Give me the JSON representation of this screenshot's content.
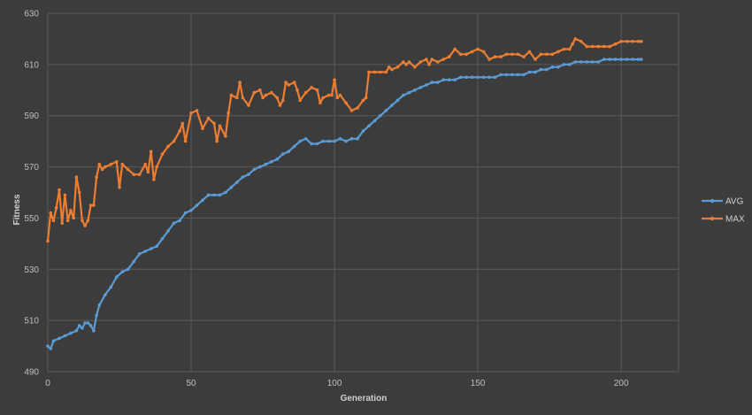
{
  "chart_data": {
    "type": "line",
    "title": "",
    "xlabel": "Generation",
    "ylabel": "Fitness",
    "xlim": [
      0,
      220
    ],
    "ylim": [
      490,
      630
    ],
    "x_ticks": [
      0,
      50,
      100,
      150,
      200
    ],
    "y_ticks": [
      490,
      510,
      530,
      550,
      570,
      590,
      610,
      630
    ],
    "grid": true,
    "legend_position": "right",
    "series": [
      {
        "name": "AVG",
        "color": "#5b9bd5",
        "points": [
          [
            0,
            500
          ],
          [
            1,
            499
          ],
          [
            2,
            502
          ],
          [
            4,
            503
          ],
          [
            6,
            504
          ],
          [
            8,
            505
          ],
          [
            10,
            506
          ],
          [
            11,
            508
          ],
          [
            12,
            507
          ],
          [
            13,
            509
          ],
          [
            14,
            509
          ],
          [
            15,
            508
          ],
          [
            16,
            506
          ],
          [
            17,
            512
          ],
          [
            18,
            516
          ],
          [
            20,
            520
          ],
          [
            22,
            523
          ],
          [
            24,
            527
          ],
          [
            26,
            529
          ],
          [
            28,
            530
          ],
          [
            30,
            533
          ],
          [
            32,
            536
          ],
          [
            34,
            537
          ],
          [
            36,
            538
          ],
          [
            38,
            539
          ],
          [
            40,
            542
          ],
          [
            42,
            545
          ],
          [
            44,
            548
          ],
          [
            46,
            549
          ],
          [
            48,
            552
          ],
          [
            50,
            553
          ],
          [
            52,
            555
          ],
          [
            54,
            557
          ],
          [
            56,
            559
          ],
          [
            58,
            559
          ],
          [
            60,
            559
          ],
          [
            62,
            560
          ],
          [
            64,
            562
          ],
          [
            66,
            564
          ],
          [
            68,
            566
          ],
          [
            70,
            567
          ],
          [
            72,
            569
          ],
          [
            74,
            570
          ],
          [
            76,
            571
          ],
          [
            78,
            572
          ],
          [
            80,
            573
          ],
          [
            82,
            575
          ],
          [
            84,
            576
          ],
          [
            86,
            578
          ],
          [
            88,
            580
          ],
          [
            90,
            581
          ],
          [
            92,
            579
          ],
          [
            94,
            579
          ],
          [
            96,
            580
          ],
          [
            98,
            580
          ],
          [
            100,
            580
          ],
          [
            102,
            581
          ],
          [
            104,
            580
          ],
          [
            106,
            581
          ],
          [
            108,
            581
          ],
          [
            110,
            584
          ],
          [
            112,
            586
          ],
          [
            114,
            588
          ],
          [
            116,
            590
          ],
          [
            118,
            592
          ],
          [
            120,
            594
          ],
          [
            122,
            596
          ],
          [
            124,
            598
          ],
          [
            126,
            599
          ],
          [
            128,
            600
          ],
          [
            130,
            601
          ],
          [
            132,
            602
          ],
          [
            134,
            603
          ],
          [
            136,
            603
          ],
          [
            138,
            604
          ],
          [
            140,
            604
          ],
          [
            142,
            604
          ],
          [
            144,
            605
          ],
          [
            146,
            605
          ],
          [
            148,
            605
          ],
          [
            150,
            605
          ],
          [
            152,
            605
          ],
          [
            154,
            605
          ],
          [
            156,
            605
          ],
          [
            158,
            606
          ],
          [
            160,
            606
          ],
          [
            162,
            606
          ],
          [
            164,
            606
          ],
          [
            166,
            606
          ],
          [
            168,
            607
          ],
          [
            170,
            607
          ],
          [
            172,
            608
          ],
          [
            174,
            608
          ],
          [
            176,
            609
          ],
          [
            178,
            609
          ],
          [
            180,
            610
          ],
          [
            182,
            610
          ],
          [
            184,
            611
          ],
          [
            186,
            611
          ],
          [
            188,
            611
          ],
          [
            190,
            611
          ],
          [
            192,
            611
          ],
          [
            194,
            612
          ],
          [
            196,
            612
          ],
          [
            198,
            612
          ],
          [
            200,
            612
          ],
          [
            202,
            612
          ],
          [
            204,
            612
          ],
          [
            206,
            612
          ],
          [
            207,
            612
          ]
        ]
      },
      {
        "name": "MAX",
        "color": "#ed7d31",
        "points": [
          [
            0,
            541
          ],
          [
            1,
            552
          ],
          [
            2,
            549
          ],
          [
            3,
            554
          ],
          [
            4,
            561
          ],
          [
            5,
            548
          ],
          [
            6,
            559
          ],
          [
            7,
            549
          ],
          [
            8,
            553
          ],
          [
            9,
            550
          ],
          [
            10,
            566
          ],
          [
            11,
            560
          ],
          [
            12,
            549
          ],
          [
            13,
            547
          ],
          [
            14,
            549
          ],
          [
            15,
            555
          ],
          [
            16,
            555
          ],
          [
            17,
            566
          ],
          [
            18,
            571
          ],
          [
            19,
            569
          ],
          [
            20,
            570
          ],
          [
            22,
            571
          ],
          [
            24,
            572
          ],
          [
            25,
            562
          ],
          [
            26,
            571
          ],
          [
            28,
            569
          ],
          [
            30,
            567
          ],
          [
            32,
            567
          ],
          [
            34,
            571
          ],
          [
            35,
            568
          ],
          [
            36,
            576
          ],
          [
            37,
            565
          ],
          [
            38,
            570
          ],
          [
            40,
            575
          ],
          [
            42,
            578
          ],
          [
            44,
            580
          ],
          [
            46,
            584
          ],
          [
            47,
            587
          ],
          [
            48,
            580
          ],
          [
            50,
            591
          ],
          [
            52,
            592
          ],
          [
            54,
            585
          ],
          [
            56,
            589
          ],
          [
            58,
            587
          ],
          [
            59,
            580
          ],
          [
            60,
            586
          ],
          [
            62,
            582
          ],
          [
            63,
            591
          ],
          [
            64,
            598
          ],
          [
            66,
            597
          ],
          [
            67,
            603
          ],
          [
            68,
            597
          ],
          [
            70,
            594
          ],
          [
            72,
            599
          ],
          [
            74,
            600
          ],
          [
            75,
            597
          ],
          [
            76,
            598
          ],
          [
            78,
            599
          ],
          [
            80,
            597
          ],
          [
            81,
            594
          ],
          [
            82,
            596
          ],
          [
            83,
            603
          ],
          [
            84,
            602
          ],
          [
            86,
            603
          ],
          [
            87,
            600
          ],
          [
            88,
            596
          ],
          [
            90,
            599
          ],
          [
            92,
            601
          ],
          [
            94,
            600
          ],
          [
            95,
            595
          ],
          [
            96,
            597
          ],
          [
            98,
            598
          ],
          [
            99,
            598
          ],
          [
            100,
            604
          ],
          [
            101,
            597
          ],
          [
            102,
            598
          ],
          [
            104,
            595
          ],
          [
            106,
            592
          ],
          [
            108,
            593
          ],
          [
            110,
            596
          ],
          [
            111,
            597
          ],
          [
            112,
            607
          ],
          [
            114,
            607
          ],
          [
            116,
            607
          ],
          [
            118,
            607
          ],
          [
            119,
            609
          ],
          [
            120,
            608
          ],
          [
            122,
            609
          ],
          [
            124,
            611
          ],
          [
            125,
            610
          ],
          [
            126,
            611
          ],
          [
            128,
            609
          ],
          [
            130,
            611
          ],
          [
            132,
            612
          ],
          [
            133,
            610
          ],
          [
            134,
            612
          ],
          [
            136,
            611
          ],
          [
            138,
            612
          ],
          [
            140,
            613
          ],
          [
            142,
            616
          ],
          [
            144,
            614
          ],
          [
            146,
            614
          ],
          [
            148,
            615
          ],
          [
            150,
            616
          ],
          [
            152,
            615
          ],
          [
            154,
            612
          ],
          [
            156,
            613
          ],
          [
            158,
            613
          ],
          [
            160,
            614
          ],
          [
            162,
            614
          ],
          [
            164,
            614
          ],
          [
            166,
            613
          ],
          [
            168,
            615
          ],
          [
            170,
            612
          ],
          [
            172,
            614
          ],
          [
            174,
            614
          ],
          [
            176,
            614
          ],
          [
            178,
            615
          ],
          [
            180,
            616
          ],
          [
            182,
            616
          ],
          [
            183,
            618
          ],
          [
            184,
            620
          ],
          [
            186,
            619
          ],
          [
            188,
            617
          ],
          [
            190,
            617
          ],
          [
            192,
            617
          ],
          [
            194,
            617
          ],
          [
            196,
            617
          ],
          [
            198,
            618
          ],
          [
            200,
            619
          ],
          [
            202,
            619
          ],
          [
            204,
            619
          ],
          [
            206,
            619
          ],
          [
            207,
            619
          ]
        ]
      }
    ]
  }
}
